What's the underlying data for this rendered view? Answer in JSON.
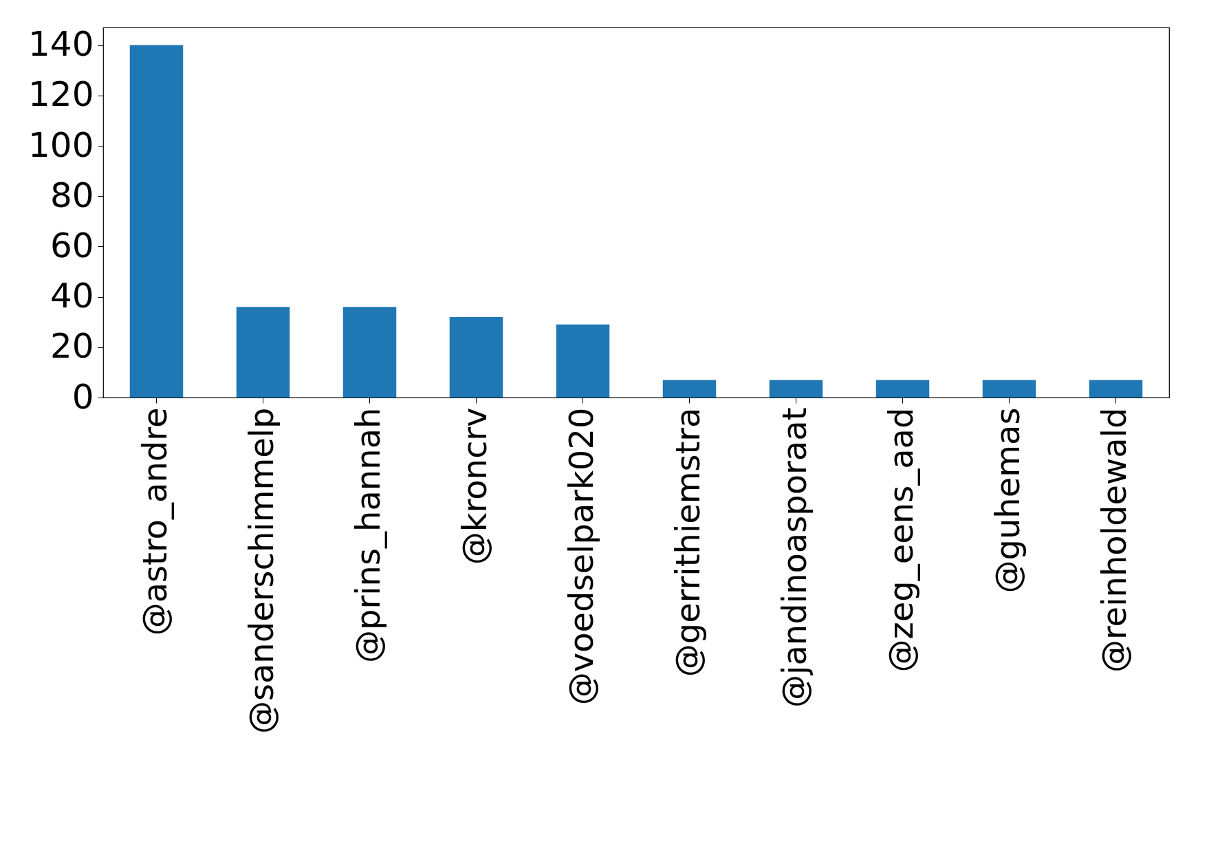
{
  "chart_data": {
    "type": "bar",
    "categories": [
      "@astro_andre",
      "@sanderschimmelp",
      "@prins_hannah",
      "@kroncrv",
      "@voedselpark020",
      "@gerrithiemstra",
      "@jandinoasporaat",
      "@zeg_eens_aad",
      "@guhemas",
      "@reinholdewald"
    ],
    "values": [
      140,
      36,
      36,
      32,
      29,
      7,
      7,
      7,
      7,
      7
    ],
    "color": "#1f77b4",
    "ylim": [
      0,
      147
    ],
    "yticks": [
      0,
      20,
      40,
      60,
      80,
      100,
      120,
      140
    ],
    "grid": false
  }
}
